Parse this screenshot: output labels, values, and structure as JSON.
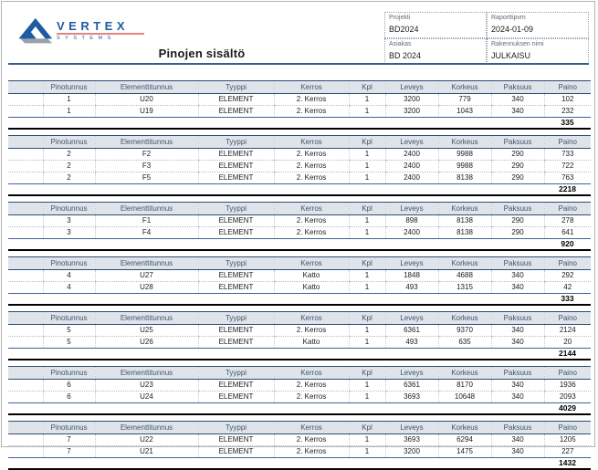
{
  "logo": {
    "brand": "VERTEX",
    "sub": "SYSTEMS"
  },
  "title": "Pinojen sisältö",
  "info_box": {
    "fields": [
      {
        "label": "Projekti",
        "value": "BD2024"
      },
      {
        "label": "Raporttipvm",
        "value": "2024-01-09"
      },
      {
        "label": "Asiakas",
        "value": "BD 2024"
      },
      {
        "label": "Rakennuksen nimi",
        "value": "JULKAISU"
      }
    ]
  },
  "columns": [
    "Pinotunnus",
    "Elementtitunnus",
    "Tyyppi",
    "Kerros",
    "Kpl",
    "Leveys",
    "Korkeus",
    "Paksuus",
    "Paino"
  ],
  "tables": [
    {
      "rows": [
        [
          "1",
          "U20",
          "ELEMENT",
          "2. Kerros",
          "1",
          "3200",
          "779",
          "340",
          "102"
        ],
        [
          "1",
          "U19",
          "ELEMENT",
          "2. Kerros",
          "1",
          "3200",
          "1043",
          "340",
          "232"
        ]
      ],
      "total": "335"
    },
    {
      "rows": [
        [
          "2",
          "F2",
          "ELEMENT",
          "2. Kerros",
          "1",
          "2400",
          "9988",
          "290",
          "733"
        ],
        [
          "2",
          "F3",
          "ELEMENT",
          "2. Kerros",
          "1",
          "2400",
          "9988",
          "290",
          "722"
        ],
        [
          "2",
          "F5",
          "ELEMENT",
          "2. Kerros",
          "1",
          "2400",
          "8138",
          "290",
          "763"
        ]
      ],
      "total": "2218"
    },
    {
      "rows": [
        [
          "3",
          "F1",
          "ELEMENT",
          "2. Kerros",
          "1",
          "898",
          "8138",
          "290",
          "278"
        ],
        [
          "3",
          "F4",
          "ELEMENT",
          "2. Kerros",
          "1",
          "2400",
          "8138",
          "290",
          "641"
        ]
      ],
      "total": "920"
    },
    {
      "rows": [
        [
          "4",
          "U27",
          "ELEMENT",
          "Katto",
          "1",
          "1848",
          "4688",
          "340",
          "292"
        ],
        [
          "4",
          "U28",
          "ELEMENT",
          "Katto",
          "1",
          "493",
          "1315",
          "340",
          "42"
        ]
      ],
      "total": "333"
    },
    {
      "rows": [
        [
          "5",
          "U25",
          "ELEMENT",
          "2. Kerros",
          "1",
          "6361",
          "9370",
          "340",
          "2124"
        ],
        [
          "5",
          "U26",
          "ELEMENT",
          "Katto",
          "1",
          "493",
          "635",
          "340",
          "20"
        ]
      ],
      "total": "2144"
    },
    {
      "rows": [
        [
          "6",
          "U23",
          "ELEMENT",
          "2. Kerros",
          "1",
          "6361",
          "8170",
          "340",
          "1936"
        ],
        [
          "6",
          "U24",
          "ELEMENT",
          "2. Kerros",
          "1",
          "3693",
          "10648",
          "340",
          "2093"
        ]
      ],
      "total": "4029"
    },
    {
      "rows": [
        [
          "7",
          "U22",
          "ELEMENT",
          "2. Kerros",
          "1",
          "3693",
          "6294",
          "340",
          "1205"
        ],
        [
          "7",
          "U21",
          "ELEMENT",
          "2. Kerros",
          "1",
          "3200",
          "1475",
          "340",
          "227"
        ]
      ],
      "total": "1432"
    }
  ],
  "colors": {
    "logo_blue": "#1e5ba3",
    "logo_underline_red": "#e8837d",
    "header_row_bg": "#dee4ea",
    "navy_border": "#2e4d72",
    "title_rule_blue": "#35608d",
    "total_top_line_blue": "#3c669a",
    "block_bottom_line": "#000000"
  }
}
